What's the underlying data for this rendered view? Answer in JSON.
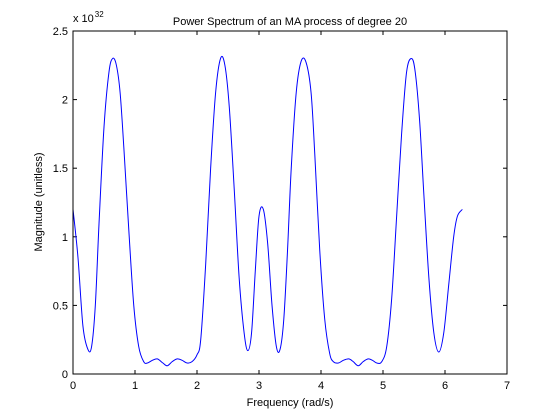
{
  "chart_data": {
    "type": "line",
    "title": "Power Spectrum of an MA process of degree 20",
    "xlabel": "Frequency (rad/s)",
    "ylabel": "Magnitude (unitless)",
    "xlim": [
      0,
      7
    ],
    "ylim": [
      0,
      2.5
    ],
    "y_multiplier_base": "x 10",
    "y_multiplier_exponent": "32",
    "xticks": [
      0,
      1,
      2,
      3,
      4,
      5,
      6,
      7
    ],
    "xtick_labels": [
      "0",
      "1",
      "2",
      "3",
      "4",
      "5",
      "6",
      "7"
    ],
    "yticks": [
      0,
      0.5,
      1,
      1.5,
      2,
      2.5
    ],
    "ytick_labels": [
      "0",
      "0.5",
      "1",
      "1.5",
      "2",
      "2.5"
    ],
    "grid": false,
    "legend": "none",
    "line_color": "#0000ff",
    "series": [
      {
        "x": [
          0.0,
          0.08,
          0.16,
          0.24,
          0.3,
          0.36,
          0.42,
          0.5,
          0.58,
          0.64,
          0.7,
          0.76,
          0.82,
          0.9,
          0.98,
          1.06,
          1.14,
          1.2,
          1.28,
          1.36,
          1.45,
          1.52,
          1.6,
          1.68,
          1.76,
          1.84,
          1.92,
          2.0,
          2.06,
          2.14,
          2.22,
          2.3,
          2.38,
          2.45,
          2.52,
          2.6,
          2.68,
          2.76,
          2.82,
          2.88,
          2.94,
          3.0,
          3.07,
          3.14,
          3.21,
          3.28,
          3.34,
          3.4,
          3.46,
          3.52,
          3.6,
          3.68,
          3.76,
          3.84,
          3.9,
          3.98,
          4.06,
          4.14,
          4.2,
          4.28,
          4.36,
          4.45,
          4.52,
          4.6,
          4.68,
          4.76,
          4.83,
          4.9,
          4.98,
          5.06,
          5.14,
          5.22,
          5.3,
          5.38,
          5.46,
          5.52,
          5.59,
          5.66,
          5.74,
          5.82,
          5.9,
          5.98,
          6.06,
          6.14,
          6.2,
          6.28
        ],
        "y": [
          1.2,
          0.85,
          0.35,
          0.18,
          0.2,
          0.5,
          1.1,
          1.8,
          2.2,
          2.3,
          2.25,
          2.05,
          1.65,
          1.05,
          0.5,
          0.2,
          0.09,
          0.08,
          0.1,
          0.11,
          0.08,
          0.06,
          0.09,
          0.11,
          0.1,
          0.08,
          0.09,
          0.14,
          0.25,
          0.8,
          1.5,
          2.05,
          2.3,
          2.25,
          1.95,
          1.35,
          0.7,
          0.3,
          0.17,
          0.3,
          0.75,
          1.15,
          1.2,
          0.95,
          0.5,
          0.2,
          0.18,
          0.4,
          0.9,
          1.5,
          2.05,
          2.28,
          2.27,
          2.05,
          1.6,
          0.9,
          0.4,
          0.15,
          0.09,
          0.08,
          0.1,
          0.11,
          0.09,
          0.06,
          0.09,
          0.11,
          0.1,
          0.08,
          0.09,
          0.2,
          0.55,
          1.15,
          1.75,
          2.2,
          2.3,
          2.2,
          1.85,
          1.3,
          0.7,
          0.3,
          0.16,
          0.3,
          0.65,
          1.0,
          1.15,
          1.2
        ]
      }
    ]
  }
}
